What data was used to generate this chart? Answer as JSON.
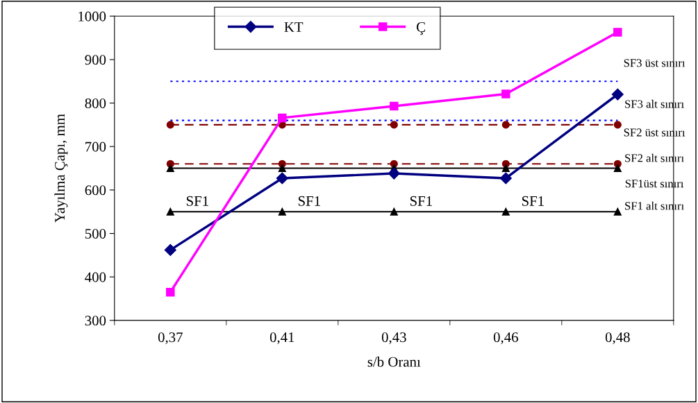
{
  "chart_data": {
    "type": "line",
    "xlabel": "s/b Oranı",
    "ylabel": "Yayılma Çapı, mm",
    "categories": [
      "0,37",
      "0,41",
      "0,43",
      "0,46",
      "0,48"
    ],
    "series": [
      {
        "color": "#0000ff",
        "values": [
          850,
          850,
          850,
          850,
          850
        ],
        "marker": "none",
        "line_style": "dotted"
      },
      {
        "color": "#0000ff",
        "values": [
          760,
          760,
          760,
          760,
          760
        ],
        "marker": "none",
        "line_style": "dotted"
      },
      {
        "color": "#800000",
        "values": [
          750,
          750,
          750,
          750,
          750
        ],
        "marker": "circle",
        "line_style": "dashed"
      },
      {
        "color": "#800000",
        "values": [
          660,
          660,
          660,
          660,
          660
        ],
        "marker": "circle",
        "line_style": "dashed"
      },
      {
        "color": "#000000",
        "values": [
          650,
          650,
          650,
          650,
          650
        ],
        "marker": "triangle",
        "line_style": "solid"
      },
      {
        "color": "#000000",
        "values": [
          550,
          550,
          550,
          550,
          550
        ],
        "marker": "triangle",
        "line_style": "solid"
      },
      {
        "name": "KT",
        "color": "#000080",
        "values": [
          462,
          627,
          638,
          627,
          820
        ],
        "marker": "diamond",
        "line_style": "solid"
      },
      {
        "name": "Ç",
        "color": "#ff00ff",
        "values": [
          365,
          766,
          793,
          821,
          963
        ],
        "marker": "square",
        "line_style": "solid"
      }
    ],
    "ylim": [
      300,
      1000
    ],
    "yticks": [
      300,
      400,
      500,
      600,
      700,
      800,
      900,
      1000
    ],
    "grid": false,
    "legend": "top",
    "annotations": [
      {
        "text": "SF3 üst sınırı",
        "x": "0,48",
        "y": 850
      },
      {
        "text": "SF3 alt sınırı",
        "x": "0,48",
        "y": 760
      },
      {
        "text": "SF2 üst sınırı",
        "x": "0,48",
        "y": 750
      },
      {
        "text": "SF2 alt sınırı",
        "x": "0,48",
        "y": 660
      },
      {
        "text": "SF1üst sınırı",
        "x": "0,48",
        "y": 650
      },
      {
        "text": "SF1 alt sınırı",
        "x": "0,48",
        "y": 550
      },
      {
        "text": "SF1",
        "x": "0,37",
        "y": 550
      },
      {
        "text": "SF1",
        "x": "0,41",
        "y": 550
      },
      {
        "text": "SF1",
        "x": "0,43",
        "y": 550
      },
      {
        "text": "SF1",
        "x": "0,46",
        "y": 550
      }
    ]
  }
}
